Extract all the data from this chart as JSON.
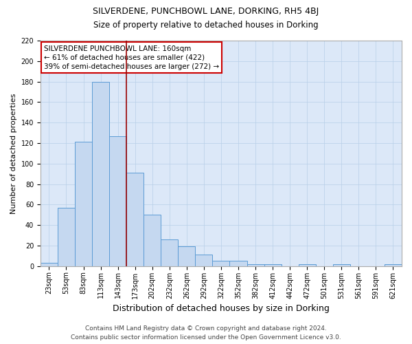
{
  "title": "SILVERDENE, PUNCHBOWL LANE, DORKING, RH5 4BJ",
  "subtitle": "Size of property relative to detached houses in Dorking",
  "xlabel": "Distribution of detached houses by size in Dorking",
  "ylabel": "Number of detached properties",
  "categories": [
    "23sqm",
    "53sqm",
    "83sqm",
    "113sqm",
    "143sqm",
    "173sqm",
    "202sqm",
    "232sqm",
    "262sqm",
    "292sqm",
    "322sqm",
    "352sqm",
    "382sqm",
    "412sqm",
    "442sqm",
    "472sqm",
    "501sqm",
    "531sqm",
    "561sqm",
    "591sqm",
    "621sqm"
  ],
  "values": [
    3,
    57,
    121,
    180,
    127,
    91,
    50,
    26,
    19,
    11,
    5,
    5,
    2,
    2,
    0,
    2,
    0,
    2,
    0,
    0,
    2
  ],
  "bar_color": "#c5d8f0",
  "bar_edge_color": "#5b9bd5",
  "vline_x": 4.5,
  "vline_color": "#990000",
  "annotation_text": "SILVERDENE PUNCHBOWL LANE: 160sqm\n← 61% of detached houses are smaller (422)\n39% of semi-detached houses are larger (272) →",
  "annotation_box_color": "#ffffff",
  "annotation_box_edge": "#cc0000",
  "ylim": [
    0,
    220
  ],
  "yticks": [
    0,
    20,
    40,
    60,
    80,
    100,
    120,
    140,
    160,
    180,
    200,
    220
  ],
  "background_color": "#dce8f8",
  "grid_color": "#b8cfe8",
  "footer_line1": "Contains HM Land Registry data © Crown copyright and database right 2024.",
  "footer_line2": "Contains public sector information licensed under the Open Government Licence v3.0.",
  "title_fontsize": 9,
  "subtitle_fontsize": 8.5,
  "xlabel_fontsize": 9,
  "ylabel_fontsize": 8,
  "tick_fontsize": 7,
  "annotation_fontsize": 7.5,
  "footer_fontsize": 6.5
}
